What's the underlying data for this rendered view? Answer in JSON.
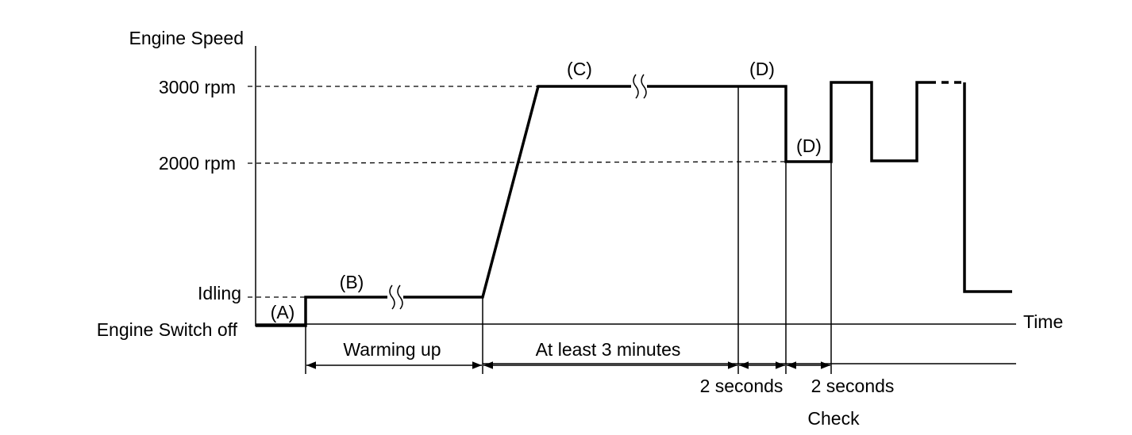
{
  "axis": {
    "y_title": "Engine Speed",
    "x_title": "Time",
    "levels": [
      "3000 rpm",
      "2000 rpm",
      "Idling",
      "Engine Switch off"
    ]
  },
  "phases": {
    "labels": [
      "(A)",
      "(B)",
      "(C)",
      "(D)",
      "(D)"
    ]
  },
  "timeline": {
    "intervals": [
      "Warming up",
      "At least 3 minutes",
      "2 seconds",
      "2 seconds"
    ],
    "check": "Check"
  }
}
